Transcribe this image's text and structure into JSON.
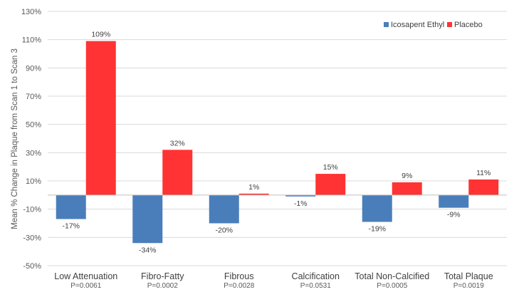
{
  "chart_data": {
    "type": "bar",
    "ylabel": "Mean % Change in Plaque from Scan 1 to Scan 3",
    "ylim": [
      -50,
      130
    ],
    "y_ticks": [
      -50,
      -30,
      -10,
      10,
      30,
      50,
      70,
      90,
      110,
      130
    ],
    "y_tick_labels": [
      "-50%",
      "-30%",
      "-10%",
      "10%",
      "30%",
      "50%",
      "70%",
      "90%",
      "110%",
      "130%"
    ],
    "grid": true,
    "legend_position": "top-right",
    "categories": [
      "Low Attenuation",
      "Fibro-Fatty",
      "Fibrous",
      "Calcification",
      "Total Non-Calcified",
      "Total Plaque"
    ],
    "p_values": [
      "P=0.0061",
      "P=0.0002",
      "P=0.0028",
      "P=0.0531",
      "P=0.0005",
      "P=0.0019"
    ],
    "series": [
      {
        "name": "Icosapent Ethyl",
        "color": "#4a7ebb",
        "values": [
          -17,
          -34,
          -20,
          -1,
          -19,
          -9
        ],
        "labels": [
          "-17%",
          "-34%",
          "-20%",
          "-1%",
          "-19%",
          "-9%"
        ]
      },
      {
        "name": "Placebo",
        "color": "#ff3333",
        "values": [
          109,
          32,
          1,
          15,
          9,
          11
        ],
        "labels": [
          "109%",
          "32%",
          "1%",
          "15%",
          "9%",
          "11%"
        ]
      }
    ]
  }
}
